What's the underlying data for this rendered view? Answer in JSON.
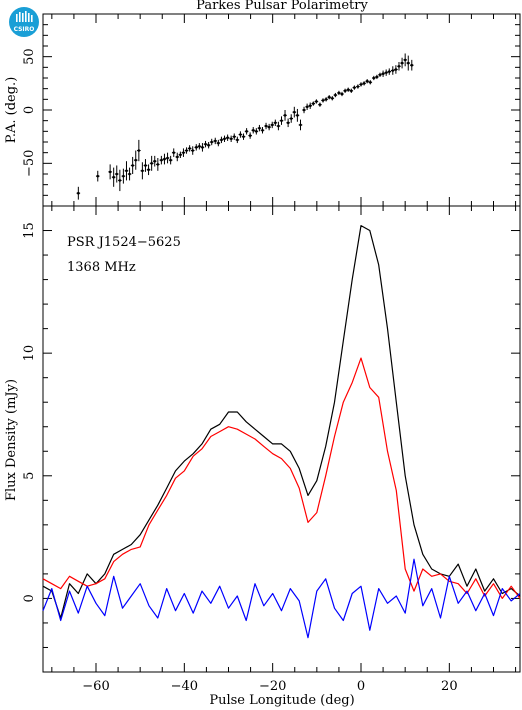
{
  "title": "Parkes Pulsar Polarimetry",
  "logo": {
    "text": "CSIRO",
    "color": "#1a9fd6"
  },
  "annotations": {
    "pulsar": "PSR J1524−5625",
    "frequency": "1368 MHz"
  },
  "colors": {
    "total": "#000000",
    "linear": "#ff0000",
    "circular": "#0000ff"
  },
  "chart_data": [
    {
      "type": "scatter",
      "panel": "position-angle",
      "ylabel": "P.A. (deg.)",
      "xlim": [
        -72,
        36
      ],
      "ylim": [
        -90,
        90
      ],
      "yticks": [
        -50,
        0,
        50
      ],
      "x": [
        -64.0,
        -59.6,
        -56.8,
        -56.0,
        -55.3,
        -54.6,
        -53.8,
        -53.1,
        -52.4,
        -51.7,
        -51.0,
        -50.3,
        -49.5,
        -48.8,
        -48.1,
        -47.4,
        -46.7,
        -46.0,
        -45.2,
        -44.5,
        -43.8,
        -43.1,
        -42.4,
        -41.6,
        -40.9,
        -40.2,
        -39.5,
        -38.8,
        -38.1,
        -37.3,
        -36.6,
        -35.9,
        -35.2,
        -34.5,
        -33.8,
        -33.0,
        -32.3,
        -31.6,
        -30.9,
        -30.2,
        -29.4,
        -28.7,
        -28.0,
        -27.3,
        -26.6,
        -25.9,
        -25.1,
        -24.4,
        -23.7,
        -23.0,
        -22.3,
        -21.5,
        -20.8,
        -20.1,
        -19.4,
        -18.7,
        -18.0,
        -17.2,
        -16.5,
        -15.8,
        -15.1,
        -14.4,
        -13.7,
        -12.9,
        -12.2,
        -11.5,
        -10.8,
        -10.1,
        -9.3,
        -8.6,
        -7.9,
        -7.2,
        -6.5,
        -5.8,
        -5.0,
        -4.3,
        -3.6,
        -2.9,
        -2.2,
        -1.5,
        -0.7,
        0.0,
        0.7,
        1.4,
        2.1,
        2.9,
        3.6,
        4.3,
        5.0,
        5.7,
        6.4,
        7.2,
        7.9,
        8.6,
        9.3,
        10.0,
        10.7,
        11.5
      ],
      "y": [
        -78,
        -62,
        -58,
        -63,
        -60,
        -66,
        -62,
        -57,
        -60,
        -52,
        -47,
        -38,
        -57,
        -52,
        -56,
        -50,
        -48,
        -51,
        -47,
        -46,
        -45,
        -47,
        -40,
        -44,
        -42,
        -40,
        -38,
        -36,
        -38,
        -35,
        -34,
        -35,
        -32,
        -33,
        -30,
        -29,
        -31,
        -28,
        -27,
        -26,
        -27,
        -25,
        -28,
        -23,
        -25,
        -20,
        -24,
        -19,
        -20,
        -17,
        -19,
        -15,
        -16,
        -14,
        -12,
        -15,
        -10,
        -5,
        -12,
        -8,
        -2,
        -5,
        -14,
        0,
        3,
        4,
        6,
        8,
        5,
        9,
        10,
        12,
        11,
        14,
        16,
        15,
        18,
        19,
        18,
        21,
        22,
        24,
        25,
        27,
        26,
        30,
        31,
        33,
        34,
        35,
        36,
        37,
        38,
        41,
        44,
        47,
        44,
        42
      ],
      "yerr": [
        6,
        5,
        7,
        9,
        8,
        10,
        7,
        9,
        6,
        8,
        9,
        10,
        8,
        6,
        5,
        7,
        5,
        6,
        4,
        5,
        5,
        4,
        4,
        4,
        3,
        4,
        3,
        3,
        4,
        3,
        3,
        4,
        3,
        3,
        3,
        3,
        3,
        3,
        3,
        3,
        3,
        3,
        3,
        3,
        3,
        3,
        3,
        3,
        3,
        3,
        3,
        3,
        3,
        3,
        3,
        4,
        4,
        5,
        4,
        4,
        5,
        6,
        5,
        3,
        3,
        3,
        2,
        2,
        2,
        2,
        2,
        2,
        2,
        2,
        2,
        2,
        2,
        2,
        2,
        2,
        2,
        2,
        2,
        2,
        2,
        2,
        2,
        2,
        3,
        3,
        3,
        4,
        4,
        4,
        5,
        6,
        7,
        5
      ]
    },
    {
      "type": "line",
      "panel": "profile",
      "xlabel": "Pulse Longitude (deg)",
      "ylabel": "Flux Density (mJy)",
      "xlim": [
        -72,
        36
      ],
      "ylim": [
        -3,
        16
      ],
      "xticks": [
        -60,
        -40,
        -20,
        0,
        20
      ],
      "yticks": [
        0,
        5,
        10,
        15
      ],
      "x": [
        -72,
        -70,
        -68,
        -66,
        -64,
        -62,
        -60,
        -58,
        -56,
        -54,
        -52,
        -50,
        -48,
        -46,
        -44,
        -42,
        -40,
        -38,
        -36,
        -34,
        -32,
        -30,
        -28,
        -26,
        -24,
        -22,
        -20,
        -18,
        -16,
        -14,
        -12,
        -10,
        -8,
        -6,
        -4,
        -2,
        0,
        2,
        4,
        6,
        8,
        10,
        12,
        14,
        16,
        18,
        20,
        22,
        24,
        26,
        28,
        30,
        32,
        34,
        36
      ],
      "series": [
        {
          "values": [
            0.5,
            0.3,
            -0.8,
            0.6,
            0.2,
            1.0,
            0.6,
            1.0,
            1.8,
            2.0,
            2.2,
            2.6,
            3.2,
            3.8,
            4.5,
            5.2,
            5.6,
            5.9,
            6.3,
            6.9,
            7.1,
            7.6,
            7.6,
            7.2,
            6.9,
            6.6,
            6.3,
            6.3,
            6.0,
            5.3,
            4.2,
            4.8,
            6.2,
            8.0,
            10.5,
            13.0,
            15.2,
            15.0,
            13.6,
            11.0,
            8.0,
            5.0,
            3.0,
            1.8,
            1.2,
            1.0,
            0.9,
            1.4,
            0.5,
            1.2,
            0.3,
            0.8,
            0.2,
            0.4,
            0.1
          ]
        },
        {
          "values": [
            0.8,
            0.6,
            0.4,
            0.9,
            0.7,
            0.5,
            0.6,
            0.8,
            1.5,
            1.8,
            2.0,
            2.1,
            3.0,
            3.6,
            4.2,
            4.9,
            5.2,
            5.8,
            6.1,
            6.6,
            6.8,
            7.0,
            6.9,
            6.7,
            6.5,
            6.2,
            5.9,
            5.7,
            5.3,
            4.5,
            3.1,
            3.5,
            5.0,
            6.6,
            8.0,
            8.8,
            9.8,
            8.6,
            8.2,
            6.0,
            4.4,
            1.2,
            0.3,
            1.2,
            0.9,
            1.0,
            0.7,
            0.6,
            0.2,
            0.8,
            0.1,
            0.6,
            0.0,
            0.5,
            0.0
          ]
        },
        {
          "values": [
            -0.5,
            0.4,
            -0.9,
            0.3,
            -0.6,
            0.5,
            -0.2,
            -0.7,
            0.9,
            -0.4,
            0.1,
            0.6,
            -0.3,
            -0.8,
            0.4,
            -0.5,
            0.2,
            -0.6,
            0.3,
            -0.2,
            0.5,
            -0.4,
            0.1,
            -0.9,
            0.6,
            -0.3,
            0.2,
            -0.5,
            0.4,
            -0.1,
            -1.6,
            0.3,
            0.8,
            -0.4,
            -0.9,
            0.2,
            0.5,
            -1.3,
            0.4,
            -0.2,
            0.1,
            -0.6,
            1.6,
            -0.3,
            0.4,
            -0.8,
            0.9,
            -0.2,
            0.3,
            -0.5,
            0.2,
            -0.7,
            0.4,
            -0.1,
            0.2
          ]
        }
      ]
    }
  ]
}
